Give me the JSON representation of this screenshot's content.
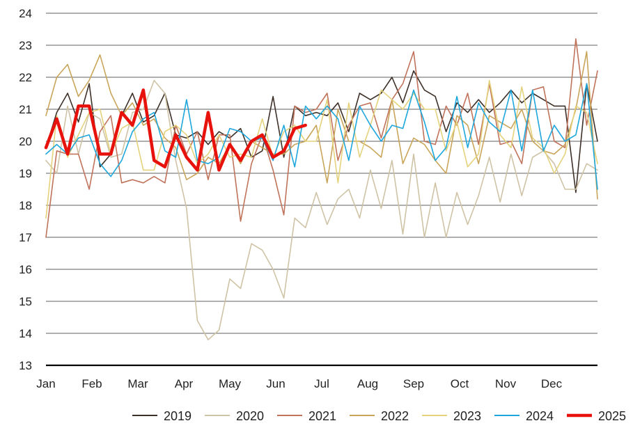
{
  "chart_data": {
    "type": "line",
    "title": "",
    "xlabel": "",
    "ylabel": "",
    "ylim": [
      13,
      24
    ],
    "yticks": [
      13,
      14,
      15,
      16,
      17,
      18,
      19,
      20,
      21,
      22,
      23,
      24
    ],
    "months": [
      "Jan",
      "Feb",
      "Mar",
      "Apr",
      "May",
      "Jun",
      "Jul",
      "Aug",
      "Sep",
      "Oct",
      "Nov",
      "Dec"
    ],
    "weeks_per_year": 52,
    "grid": true,
    "legend_position": "bottom",
    "series": [
      {
        "name": "2019",
        "color": "#3d3028",
        "width": 1.6,
        "values": [
          19.8,
          20.9,
          21.5,
          20.6,
          21.8,
          19.2,
          19.6,
          20.8,
          21.5,
          20.6,
          20.8,
          21.5,
          20.2,
          20.1,
          20.3,
          19.9,
          20.3,
          20.1,
          20.4,
          19.5,
          19.7,
          21.4,
          19.5,
          21.1,
          20.8,
          20.9,
          20.8,
          21.2,
          20.3,
          21.5,
          21.3,
          21.5,
          22.0,
          21.2,
          22.2,
          21.6,
          21.4,
          20.3,
          21.2,
          20.9,
          21.3,
          20.9,
          21.2,
          21.6,
          21.2,
          21.5,
          21.3,
          21.1,
          21.1,
          18.4,
          21.8,
          20.0
        ]
      },
      {
        "name": "2020",
        "color": "#cfc3a6",
        "width": 1.6,
        "values": [
          19.4,
          19.0,
          21.1,
          19.6,
          20.9,
          20.7,
          19.5,
          19.6,
          20.9,
          21.0,
          21.9,
          21.5,
          19.4,
          17.9,
          14.4,
          13.8,
          14.1,
          15.7,
          15.4,
          16.8,
          16.6,
          16.0,
          15.1,
          17.6,
          17.3,
          18.4,
          17.4,
          18.2,
          18.5,
          17.6,
          19.1,
          17.9,
          19.4,
          17.1,
          19.6,
          17.0,
          18.7,
          17.0,
          18.4,
          17.4,
          18.3,
          19.5,
          18.1,
          19.6,
          18.3,
          19.5,
          19.7,
          19.3,
          18.5,
          18.5,
          19.3,
          19.1
        ]
      },
      {
        "name": "2021",
        "color": "#c0735a",
        "width": 1.6,
        "values": [
          17.0,
          19.7,
          19.6,
          19.6,
          18.5,
          20.3,
          20.8,
          18.7,
          18.8,
          18.7,
          18.9,
          18.7,
          20.5,
          19.6,
          20.3,
          18.8,
          20.2,
          20.2,
          17.5,
          19.3,
          20.2,
          19.1,
          17.7,
          21.1,
          20.9,
          21.0,
          21.5,
          19.4,
          20.5,
          21.1,
          21.2,
          20.1,
          21.3,
          21.8,
          22.8,
          20.0,
          19.9,
          21.1,
          20.5,
          21.5,
          19.9,
          21.8,
          19.9,
          20.0,
          19.3,
          21.6,
          21.7,
          20.0,
          19.8,
          23.2,
          20.5,
          22.2
        ]
      },
      {
        "name": "2022",
        "color": "#c9a55a",
        "width": 1.6,
        "values": [
          20.8,
          22.0,
          22.4,
          21.4,
          21.9,
          22.7,
          21.5,
          20.8,
          21.2,
          20.5,
          20.7,
          20.1,
          19.8,
          18.8,
          19.0,
          19.5,
          19.3,
          19.9,
          19.3,
          20.0,
          19.8,
          19.6,
          19.6,
          19.9,
          20.0,
          20.5,
          18.7,
          21.0,
          20.0,
          20.0,
          19.8,
          19.5,
          21.3,
          19.3,
          20.1,
          19.9,
          19.4,
          19.0,
          20.8,
          20.5,
          19.3,
          20.8,
          20.6,
          20.4,
          21.0,
          20.0,
          19.7,
          19.6,
          19.9,
          21.0,
          22.8,
          18.2
        ]
      },
      {
        "name": "2023",
        "color": "#e4d27c",
        "width": 1.6,
        "values": [
          17.6,
          20.8,
          19.5,
          20.2,
          20.9,
          21.0,
          19.6,
          20.4,
          20.6,
          19.1,
          19.1,
          20.3,
          20.5,
          20.2,
          19.3,
          19.6,
          20.2,
          19.5,
          19.6,
          19.5,
          20.7,
          19.5,
          20.3,
          20.5,
          20.0,
          20.0,
          21.3,
          18.7,
          21.2,
          19.5,
          20.5,
          21.6,
          21.3,
          21.0,
          21.5,
          21.0,
          21.0,
          19.7,
          20.6,
          19.2,
          19.6,
          21.9,
          20.2,
          19.8,
          21.7,
          20.1,
          19.8,
          19.0,
          19.6,
          21.1,
          20.9,
          19.3
        ]
      },
      {
        "name": "2024",
        "color": "#1ea7dc",
        "width": 1.6,
        "values": [
          19.6,
          19.9,
          19.6,
          20.1,
          20.2,
          19.3,
          18.9,
          19.4,
          20.3,
          20.7,
          20.9,
          19.7,
          19.5,
          21.3,
          19.4,
          19.3,
          19.5,
          20.4,
          20.3,
          20.0,
          20.1,
          19.4,
          20.5,
          19.2,
          21.1,
          20.7,
          21.1,
          20.7,
          19.4,
          21.1,
          20.5,
          20.0,
          20.5,
          20.4,
          21.6,
          20.6,
          19.4,
          19.8,
          21.4,
          19.8,
          21.2,
          20.6,
          20.3,
          21.6,
          19.7,
          21.6,
          19.7,
          20.5,
          20.0,
          20.2,
          21.8,
          18.5
        ]
      },
      {
        "name": "2025",
        "color": "#e8120c",
        "width": 4.5,
        "values": [
          19.8,
          20.7,
          19.6,
          21.1,
          21.1,
          19.6,
          19.6,
          20.9,
          20.5,
          21.6,
          19.4,
          19.2,
          20.2,
          19.5,
          19.1,
          20.9,
          19.1,
          19.9,
          19.4,
          20.0,
          20.2,
          19.5,
          19.7,
          20.4,
          20.5
        ]
      }
    ]
  }
}
